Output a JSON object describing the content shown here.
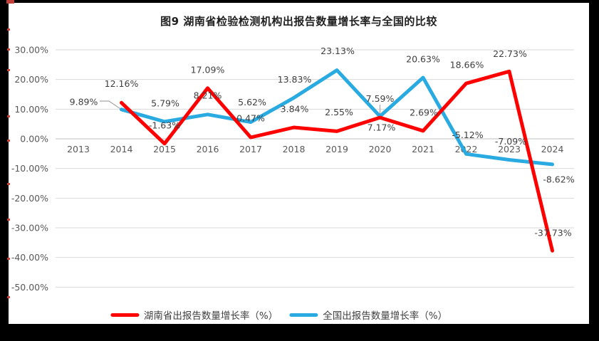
{
  "chart_data": {
    "type": "line",
    "title": "图9 湖南省检验检测机构出报告数量增长率与全国的比较",
    "categories": [
      "2013",
      "2014",
      "2015",
      "2016",
      "2017",
      "2018",
      "2019",
      "2020",
      "2021",
      "2022",
      "2023",
      "2024"
    ],
    "series": [
      {
        "name": "湖南省出报告数量增长率（%）",
        "color": "#fe0000",
        "values": [
          null,
          12.16,
          -1.63,
          17.09,
          0.47,
          3.84,
          2.55,
          7.17,
          2.69,
          18.66,
          22.73,
          -37.73
        ],
        "labels": [
          "",
          "12.16%",
          "-1.63%",
          "17.09%",
          "0.47%",
          "3.84%",
          "2.55%",
          "7.17%",
          "2.69%",
          "18.66%",
          "22.73%",
          "-37.73%"
        ]
      },
      {
        "name": "全国出报告数量增长率（%）",
        "color": "#29abe2",
        "values": [
          null,
          9.89,
          5.79,
          8.21,
          5.62,
          13.83,
          23.13,
          7.59,
          20.63,
          -5.12,
          -7.09,
          -8.62
        ],
        "labels": [
          "",
          "9.89%",
          "5.79%",
          "8.21%",
          "5.62%",
          "13.83%",
          "23.13%",
          "7.59%",
          "20.63%",
          "-5.12%",
          "-7.09%",
          "-8.62%"
        ]
      }
    ],
    "y_axis": {
      "min": -50,
      "max": 30,
      "step": 10,
      "tick_labels": [
        "30.00%",
        "20.00%",
        "10.00%",
        "0.00%",
        "-10.00%",
        "-20.00%",
        "-30.00%",
        "-40.00%",
        "-50.00%"
      ]
    },
    "grid": true,
    "legend_position": "bottom",
    "ui_colors": {
      "gridline": "#d9d9d9",
      "zero_axis": "#bfbfbf",
      "axis_text": "#595959",
      "data_label_text": "#3f3f3f",
      "leader_line": "#a6a6a6"
    }
  }
}
